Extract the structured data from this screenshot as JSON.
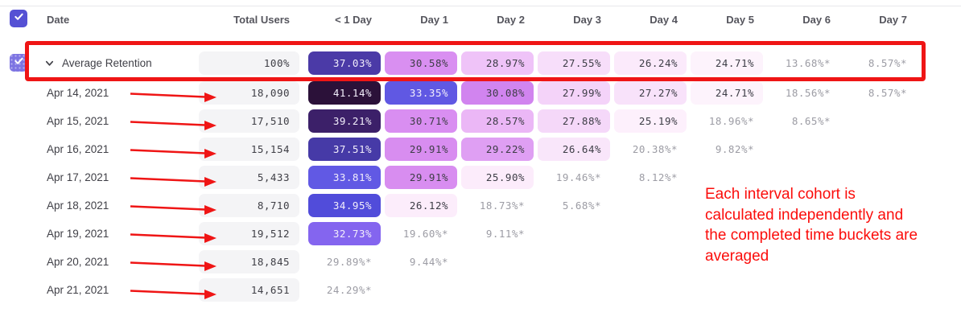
{
  "header": {
    "date": "Date",
    "total_users": "Total Users",
    "days": [
      "< 1 Day",
      "Day 1",
      "Day 2",
      "Day 3",
      "Day 4",
      "Day 5",
      "Day 6",
      "Day 7"
    ]
  },
  "average_row": {
    "label": "Average Retention",
    "total": "100%",
    "cells": [
      {
        "v": "37.03%",
        "bg": "#4b3aa7",
        "fg": "light"
      },
      {
        "v": "30.58%",
        "bg": "#d98ff1",
        "fg": "dark"
      },
      {
        "v": "28.97%",
        "bg": "#efc3f8",
        "fg": "dark"
      },
      {
        "v": "27.55%",
        "bg": "#f7defa",
        "fg": "dark"
      },
      {
        "v": "26.24%",
        "bg": "#fbeafb",
        "fg": "dark"
      },
      {
        "v": "24.71%",
        "bg": "#fdf3fc",
        "fg": "dark"
      },
      {
        "v": "13.68%*",
        "bg": "",
        "fg": "muted"
      },
      {
        "v": "8.57%*",
        "bg": "",
        "fg": "muted"
      }
    ]
  },
  "rows": [
    {
      "date": "Apr 14, 2021",
      "total": "18,090",
      "cells": [
        {
          "v": "41.14%",
          "bg": "#2b1139",
          "fg": "light"
        },
        {
          "v": "33.35%",
          "bg": "#6058e3",
          "fg": "light"
        },
        {
          "v": "30.08%",
          "bg": "#d184ef",
          "fg": "dark"
        },
        {
          "v": "27.99%",
          "bg": "#f4d3f9",
          "fg": "dark"
        },
        {
          "v": "27.27%",
          "bg": "#f8e2fa",
          "fg": "dark"
        },
        {
          "v": "24.71%",
          "bg": "#fdf3fc",
          "fg": "dark"
        },
        {
          "v": "18.56%*",
          "bg": "",
          "fg": "muted"
        },
        {
          "v": "8.57%*",
          "bg": "",
          "fg": "muted"
        }
      ]
    },
    {
      "date": "Apr 15, 2021",
      "total": "17,510",
      "cells": [
        {
          "v": "39.21%",
          "bg": "#3c2069",
          "fg": "light"
        },
        {
          "v": "30.71%",
          "bg": "#d98ef1",
          "fg": "dark"
        },
        {
          "v": "28.57%",
          "bg": "#ebb7f6",
          "fg": "dark"
        },
        {
          "v": "27.88%",
          "bg": "#f5d8f9",
          "fg": "dark"
        },
        {
          "v": "25.19%",
          "bg": "#fdf0fc",
          "fg": "dark"
        },
        {
          "v": "18.96%*",
          "bg": "",
          "fg": "muted"
        },
        {
          "v": "8.65%*",
          "bg": "",
          "fg": "muted"
        }
      ]
    },
    {
      "date": "Apr 16, 2021",
      "total": "15,154",
      "cells": [
        {
          "v": "37.51%",
          "bg": "#463aa7",
          "fg": "light"
        },
        {
          "v": "29.91%",
          "bg": "#d88df0",
          "fg": "dark"
        },
        {
          "v": "29.22%",
          "bg": "#df9ff3",
          "fg": "dark"
        },
        {
          "v": "26.64%",
          "bg": "#f9e6fa",
          "fg": "dark"
        },
        {
          "v": "20.38%*",
          "bg": "",
          "fg": "muted"
        },
        {
          "v": "9.82%*",
          "bg": "",
          "fg": "muted"
        }
      ]
    },
    {
      "date": "Apr 17, 2021",
      "total": "5,433",
      "cells": [
        {
          "v": "33.81%",
          "bg": "#6159e4",
          "fg": "light"
        },
        {
          "v": "29.91%",
          "bg": "#d88df0",
          "fg": "dark"
        },
        {
          "v": "25.90%",
          "bg": "#fcecfb",
          "fg": "dark"
        },
        {
          "v": "19.46%*",
          "bg": "",
          "fg": "muted"
        },
        {
          "v": "8.12%*",
          "bg": "",
          "fg": "muted"
        }
      ]
    },
    {
      "date": "Apr 18, 2021",
      "total": "8,710",
      "cells": [
        {
          "v": "34.95%",
          "bg": "#514cda",
          "fg": "light"
        },
        {
          "v": "26.12%",
          "bg": "#fcedfb",
          "fg": "dark"
        },
        {
          "v": "18.73%*",
          "bg": "",
          "fg": "muted"
        },
        {
          "v": "5.68%*",
          "bg": "",
          "fg": "muted"
        }
      ]
    },
    {
      "date": "Apr 19, 2021",
      "total": "19,512",
      "cells": [
        {
          "v": "32.73%",
          "bg": "#8465ef",
          "fg": "light"
        },
        {
          "v": "19.60%*",
          "bg": "",
          "fg": "muted"
        },
        {
          "v": "9.11%*",
          "bg": "",
          "fg": "muted"
        }
      ]
    },
    {
      "date": "Apr 20, 2021",
      "total": "18,845",
      "cells": [
        {
          "v": "29.89%*",
          "bg": "",
          "fg": "muted"
        },
        {
          "v": "9.44%*",
          "bg": "",
          "fg": "muted"
        }
      ]
    },
    {
      "date": "Apr 21, 2021",
      "total": "14,651",
      "cells": [
        {
          "v": "24.29%*",
          "bg": "",
          "fg": "muted"
        }
      ]
    }
  ],
  "annotation": {
    "color": "#fb0d0b",
    "lines": [
      "Each interval cohort is",
      "calculated independently and",
      "the completed time buckets are",
      "averaged"
    ]
  },
  "colors": {
    "accent_checkbox": "#5551d4",
    "row_checkbox": "#7d74e2",
    "red_overlay": "#ef1515",
    "pill_bg": "#f4f4f6"
  }
}
